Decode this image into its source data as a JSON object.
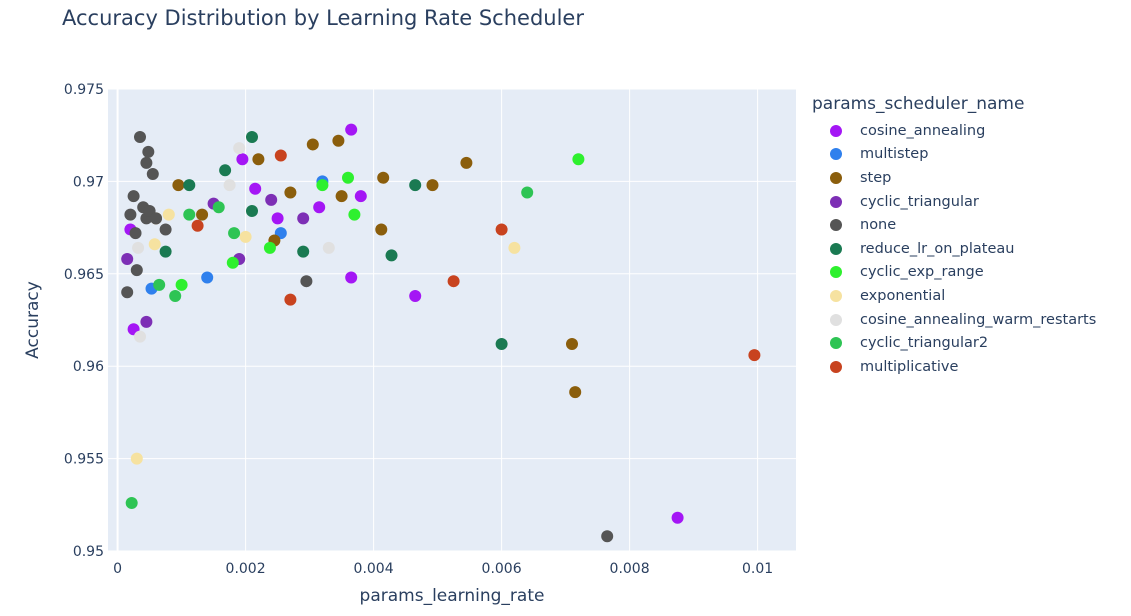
{
  "chart_data": {
    "type": "scatter",
    "title": "Accuracy Distribution by Learning Rate Scheduler",
    "xlabel": "params_learning_rate",
    "ylabel": "Accuracy",
    "legend_title": "params_scheduler_name",
    "legend_position": "right",
    "grid": true,
    "xlim": [
      -0.00015,
      0.0106
    ],
    "ylim": [
      0.95,
      0.975
    ],
    "x_ticks": [
      0,
      0.002,
      0.004,
      0.006,
      0.008,
      0.01
    ],
    "x_tick_labels": [
      "0",
      "0.002",
      "0.004",
      "0.006",
      "0.008",
      "0.01"
    ],
    "y_ticks": [
      0.95,
      0.955,
      0.96,
      0.965,
      0.97,
      0.975
    ],
    "y_tick_labels": [
      "0.95",
      "0.955",
      "0.96",
      "0.965",
      "0.97",
      "0.975"
    ],
    "colors": {
      "plot_bg": "#e5ecf6",
      "grid": "#ffffff",
      "text": "#2a3f5f"
    },
    "series": [
      {
        "name": "cosine_annealing",
        "color": "#a416f5",
        "points": [
          [
            0.0002,
            0.9674
          ],
          [
            0.00025,
            0.962
          ],
          [
            0.00195,
            0.9712
          ],
          [
            0.00215,
            0.9696
          ],
          [
            0.0025,
            0.968
          ],
          [
            0.00315,
            0.9686
          ],
          [
            0.00365,
            0.9728
          ],
          [
            0.0038,
            0.9692
          ],
          [
            0.00365,
            0.9648
          ],
          [
            0.00465,
            0.9638
          ],
          [
            0.00875,
            0.9518
          ]
        ]
      },
      {
        "name": "multistep",
        "color": "#2f80ed",
        "points": [
          [
            0.00053,
            0.9642
          ],
          [
            0.0014,
            0.9648
          ],
          [
            0.00255,
            0.9672
          ],
          [
            0.0032,
            0.97
          ]
        ]
      },
      {
        "name": "step",
        "color": "#8b5e0c",
        "points": [
          [
            0.00095,
            0.9698
          ],
          [
            0.0006,
            0.968
          ],
          [
            0.00132,
            0.9682
          ],
          [
            0.0022,
            0.9712
          ],
          [
            0.0027,
            0.9694
          ],
          [
            0.00245,
            0.9668
          ],
          [
            0.00305,
            0.972
          ],
          [
            0.0035,
            0.9692
          ],
          [
            0.00345,
            0.9722
          ],
          [
            0.00415,
            0.9702
          ],
          [
            0.00412,
            0.9674
          ],
          [
            0.00492,
            0.9698
          ],
          [
            0.00545,
            0.971
          ],
          [
            0.0071,
            0.9612
          ],
          [
            0.00715,
            0.9586
          ]
        ]
      },
      {
        "name": "cyclic_triangular",
        "color": "#7d2fb5",
        "points": [
          [
            0.00015,
            0.9658
          ],
          [
            0.00045,
            0.9624
          ],
          [
            0.0015,
            0.9688
          ],
          [
            0.0019,
            0.9658
          ],
          [
            0.0024,
            0.969
          ],
          [
            0.0029,
            0.968
          ]
        ]
      },
      {
        "name": "none",
        "color": "#555555",
        "points": [
          [
            0.00015,
            0.964
          ],
          [
            0.0002,
            0.9682
          ],
          [
            0.00025,
            0.9692
          ],
          [
            0.00028,
            0.9672
          ],
          [
            0.0003,
            0.9652
          ],
          [
            0.00035,
            0.9724
          ],
          [
            0.0004,
            0.9686
          ],
          [
            0.00045,
            0.971
          ],
          [
            0.00048,
            0.9716
          ],
          [
            0.00045,
            0.968
          ],
          [
            0.0005,
            0.9684
          ],
          [
            0.00055,
            0.9704
          ],
          [
            0.0006,
            0.968
          ],
          [
            0.00075,
            0.9674
          ],
          [
            0.00295,
            0.9646
          ],
          [
            0.00765,
            0.9508
          ]
        ]
      },
      {
        "name": "reduce_lr_on_plateau",
        "color": "#1a7a52",
        "points": [
          [
            0.00075,
            0.9662
          ],
          [
            0.00112,
            0.9698
          ],
          [
            0.00168,
            0.9706
          ],
          [
            0.0021,
            0.9724
          ],
          [
            0.0021,
            0.9684
          ],
          [
            0.0029,
            0.9662
          ],
          [
            0.00465,
            0.9698
          ],
          [
            0.00428,
            0.966
          ],
          [
            0.006,
            0.9612
          ]
        ]
      },
      {
        "name": "cyclic_exp_range",
        "color": "#2ef02e",
        "points": [
          [
            0.001,
            0.9644
          ],
          [
            0.0018,
            0.9656
          ],
          [
            0.00238,
            0.9664
          ],
          [
            0.0032,
            0.9698
          ],
          [
            0.0036,
            0.9702
          ],
          [
            0.0037,
            0.9682
          ],
          [
            0.0072,
            0.9712
          ]
        ]
      },
      {
        "name": "exponential",
        "color": "#f6e2a0",
        "points": [
          [
            0.0003,
            0.955
          ],
          [
            0.00058,
            0.9666
          ],
          [
            0.0008,
            0.9682
          ],
          [
            0.002,
            0.967
          ],
          [
            0.0062,
            0.9664
          ]
        ]
      },
      {
        "name": "cosine_annealing_warm_restarts",
        "color": "#e0e0e0",
        "points": [
          [
            0.00035,
            0.9616
          ],
          [
            0.00032,
            0.9664
          ],
          [
            0.0019,
            0.9718
          ],
          [
            0.00175,
            0.9698
          ],
          [
            0.0033,
            0.9664
          ]
        ]
      },
      {
        "name": "cyclic_triangular2",
        "color": "#2ec454",
        "points": [
          [
            0.00022,
            0.9526
          ],
          [
            0.00065,
            0.9644
          ],
          [
            0.0009,
            0.9638
          ],
          [
            0.00112,
            0.9682
          ],
          [
            0.00158,
            0.9686
          ],
          [
            0.00182,
            0.9672
          ],
          [
            0.0064,
            0.9694
          ]
        ]
      },
      {
        "name": "multiplicative",
        "color": "#c8431f",
        "points": [
          [
            0.00125,
            0.9676
          ],
          [
            0.00255,
            0.9714
          ],
          [
            0.0027,
            0.9636
          ],
          [
            0.00525,
            0.9646
          ],
          [
            0.006,
            0.9674
          ],
          [
            0.00995,
            0.9606
          ]
        ]
      }
    ]
  }
}
